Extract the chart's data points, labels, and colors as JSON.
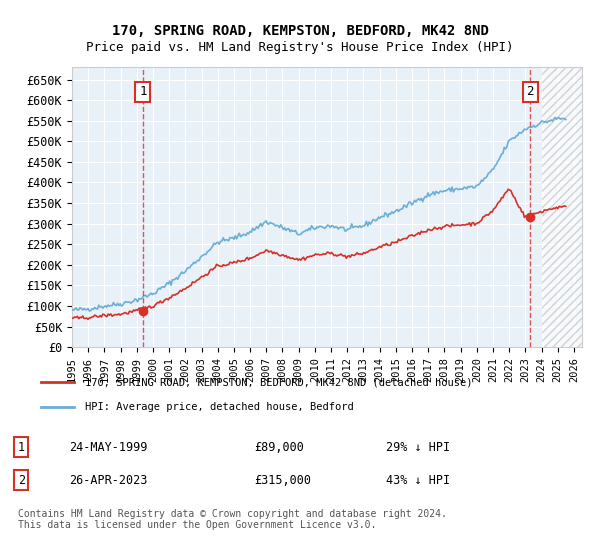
{
  "title1": "170, SPRING ROAD, KEMPSTON, BEDFORD, MK42 8ND",
  "title2": "Price paid vs. HM Land Registry's House Price Index (HPI)",
  "ylabel_ticks": [
    "£0",
    "£50K",
    "£100K",
    "£150K",
    "£200K",
    "£250K",
    "£300K",
    "£350K",
    "£400K",
    "£450K",
    "£500K",
    "£550K",
    "£600K",
    "£650K"
  ],
  "ytick_values": [
    0,
    50000,
    100000,
    150000,
    200000,
    250000,
    300000,
    350000,
    400000,
    450000,
    500000,
    550000,
    600000,
    650000
  ],
  "legend_line1": "170, SPRING ROAD, KEMPSTON, BEDFORD, MK42 8ND (detached house)",
  "legend_line2": "HPI: Average price, detached house, Bedford",
  "sale1_label": "1",
  "sale1_date": "24-MAY-1999",
  "sale1_price": "£89,000",
  "sale1_hpi": "29% ↓ HPI",
  "sale2_label": "2",
  "sale2_date": "26-APR-2023",
  "sale2_price": "£315,000",
  "sale2_hpi": "43% ↓ HPI",
  "footer": "Contains HM Land Registry data © Crown copyright and database right 2024.\nThis data is licensed under the Open Government Licence v3.0.",
  "hpi_color": "#6baed6",
  "price_color": "#d73027",
  "sale_marker_color": "#d73027",
  "bg_color": "#e8f0f8",
  "hatch_color": "#c0c8d8",
  "annotation_box_color": "#d73027",
  "annotation_text_color": "black"
}
